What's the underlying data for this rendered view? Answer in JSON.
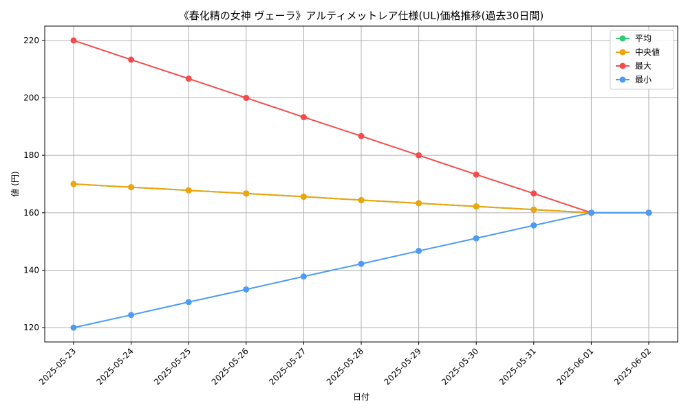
{
  "chart_data": {
    "type": "line",
    "title": "《春化精の女神 ヴェーラ》アルティメットレア仕様(UL)価格推移(過去30日間)",
    "xlabel": "日付",
    "ylabel": "値 (円)",
    "categories": [
      "2025-05-23",
      "2025-05-24",
      "2025-05-25",
      "2025-05-26",
      "2025-05-27",
      "2025-05-28",
      "2025-05-29",
      "2025-05-30",
      "2025-05-31",
      "2025-06-01",
      "2025-06-02"
    ],
    "ylim": [
      115,
      225
    ],
    "yticks": [
      120,
      140,
      160,
      180,
      200,
      220
    ],
    "grid": true,
    "legend_position": "top-right",
    "series": [
      {
        "name": "平均",
        "color": "#2ecc71",
        "values": [
          170,
          168.9,
          167.8,
          166.7,
          165.6,
          164.4,
          163.3,
          162.2,
          161.1,
          160,
          160
        ]
      },
      {
        "name": "中央値",
        "color": "#f0a30a",
        "values": [
          170,
          168.9,
          167.8,
          166.7,
          165.6,
          164.4,
          163.3,
          162.2,
          161.1,
          160,
          160
        ]
      },
      {
        "name": "最大",
        "color": "#f44c4c",
        "values": [
          220,
          213.3,
          206.7,
          200,
          193.3,
          186.7,
          180,
          173.3,
          166.7,
          160,
          160
        ]
      },
      {
        "name": "最小",
        "color": "#4c9bf4",
        "values": [
          120,
          124.4,
          128.9,
          133.3,
          137.8,
          142.2,
          146.7,
          151.1,
          155.6,
          160,
          160
        ]
      }
    ]
  }
}
